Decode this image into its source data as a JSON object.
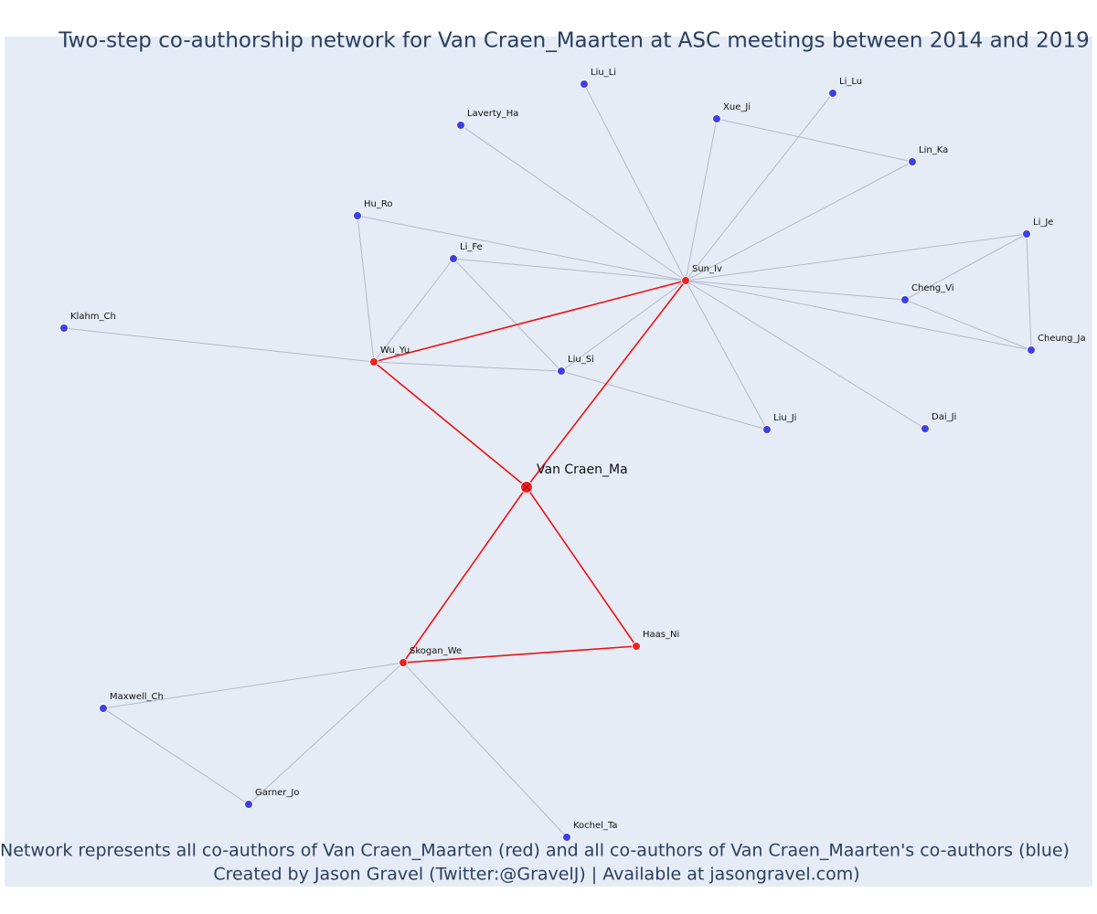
{
  "title": "Two-step co-authorship network for Van Craen_Maarten at ASC meetings between 2014 and 2019",
  "nodes": [
    {
      "label": "Van Craen_Ma"
    },
    {
      "label": "Sun_Iv"
    },
    {
      "label": "Wu_Yu"
    },
    {
      "label": "Skogan_We"
    },
    {
      "label": "Haas_Ni"
    },
    {
      "label": "Liu_Li"
    },
    {
      "label": "Li_Lu"
    },
    {
      "label": "Laverty_Ha"
    },
    {
      "label": "Xue_Ji"
    },
    {
      "label": "Lin_Ka"
    },
    {
      "label": "Hu_Ro"
    },
    {
      "label": "Li_Fe"
    },
    {
      "label": "Li_Je"
    },
    {
      "label": "Cheng_Vi"
    },
    {
      "label": "Cheung_Ja"
    },
    {
      "label": "Klahm_Ch"
    },
    {
      "label": "Liu_Si"
    },
    {
      "label": "Liu_Ji"
    },
    {
      "label": "Dai_Ji"
    },
    {
      "label": "Maxwell_Ch"
    },
    {
      "label": "Garner_Jo"
    },
    {
      "label": "Kochel_Ta"
    }
  ],
  "caption": [
    "Network represents all co-authors of Van Craen_Maarten (red) and all co-authors of Van Craen_Maarten's co-authors (blue)",
    "Created by Jason Gravel (Twitter:@GravelJ) | Available at jasongravel.com)"
  ]
}
